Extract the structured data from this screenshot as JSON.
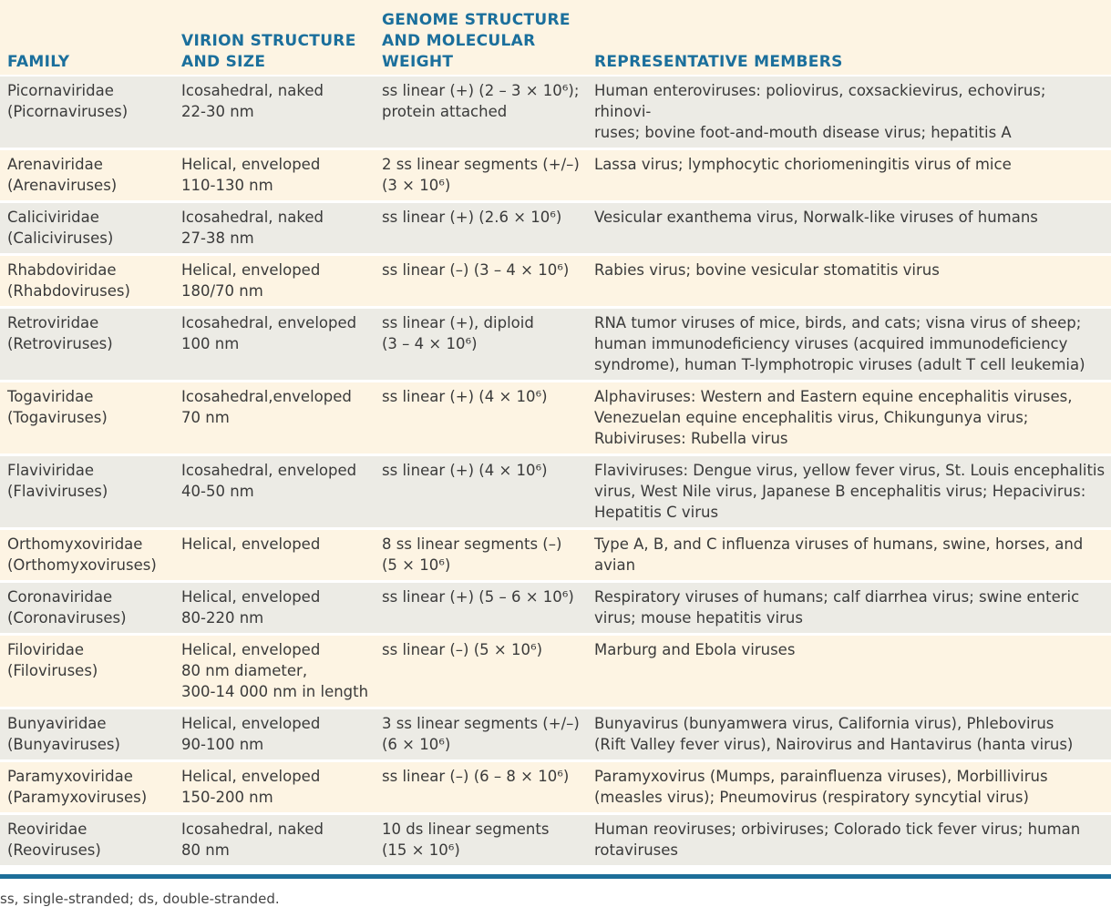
{
  "headers": {
    "family": [
      "FAMILY"
    ],
    "virion": [
      "VIRION STRUCTURE",
      "AND SIZE"
    ],
    "genome": [
      "GENOME STRUCTURE",
      "AND MOLECULAR",
      "WEIGHT"
    ],
    "members": [
      "REPRESENTATIVE MEMBERS"
    ]
  },
  "colors": {
    "header_text": "#1b6f9c",
    "row_grey": "#ecebe5",
    "row_cream": "#fdf4e3",
    "rule": "#1d6e99"
  },
  "rows": [
    {
      "family": [
        "Picornaviridae",
        "(Picornaviruses)"
      ],
      "virion": [
        "Icosahedral, naked",
        "22-30 nm"
      ],
      "genome": [
        "ss linear (+) (2 – 3 × 10⁶);",
        "protein attached"
      ],
      "members": [
        "Human enteroviruses: poliovirus, coxsackievirus, echovirus; rhinovi-",
        "ruses; bovine foot-and-mouth disease virus; hepatitis A"
      ]
    },
    {
      "family": [
        "Arenaviridae",
        "(Arenaviruses)"
      ],
      "virion": [
        "Helical, enveloped",
        "110-130 nm"
      ],
      "genome": [
        "2 ss linear segments (+/–)",
        "(3 × 10⁶)"
      ],
      "members": [
        "Lassa virus; lymphocytic choriomeningitis virus of mice"
      ]
    },
    {
      "family": [
        "Caliciviridae",
        "(Caliciviruses)"
      ],
      "virion": [
        "Icosahedral, naked",
        "27-38 nm"
      ],
      "genome": [
        "ss linear (+) (2.6 × 10⁶)"
      ],
      "members": [
        "Vesicular exanthema virus, Norwalk-like viruses of humans"
      ]
    },
    {
      "family": [
        "Rhabdoviridae",
        "(Rhabdoviruses)"
      ],
      "virion": [
        "Helical, enveloped",
        "180/70 nm"
      ],
      "genome": [
        "ss linear (–) (3 – 4 × 10⁶)"
      ],
      "members": [
        "Rabies virus; bovine vesicular stomatitis virus"
      ]
    },
    {
      "family": [
        "Retroviridae",
        "(Retroviruses)"
      ],
      "virion": [
        "Icosahedral, enveloped",
        "100 nm"
      ],
      "genome": [
        "ss linear (+), diploid",
        "(3 – 4 × 10⁶)"
      ],
      "members": [
        "RNA tumor viruses of mice, birds, and cats; visna virus of sheep;",
        "human immunodeficiency viruses (acquired immunodeficiency",
        "syndrome), human T-lymphotropic viruses (adult T cell leukemia)"
      ]
    },
    {
      "family": [
        "Togaviridae",
        "(Togaviruses)"
      ],
      "virion": [
        "Icosahedral,enveloped",
        "70 nm"
      ],
      "genome": [
        "ss linear (+) (4 × 10⁶)"
      ],
      "members": [
        "Alphaviruses: Western and Eastern equine encephalitis viruses,",
        "Venezuelan equine encephalitis virus, Chikungunya virus;",
        "Rubiviruses: Rubella virus"
      ]
    },
    {
      "family": [
        "Flaviviridae",
        "(Flaviviruses)"
      ],
      "virion": [
        "Icosahedral, enveloped",
        "40-50 nm"
      ],
      "genome": [
        "ss linear (+) (4 × 10⁶)"
      ],
      "members": [
        "Flaviviruses: Dengue virus, yellow fever virus, St. Louis encephalitis",
        "virus, West Nile virus, Japanese B encephalitis virus; Hepacivirus:",
        "Hepatitis C virus"
      ]
    },
    {
      "family": [
        "Orthomyxoviridae",
        "(Orthomyxoviruses)"
      ],
      "virion": [
        "Helical, enveloped"
      ],
      "genome": [
        "8 ss linear segments (–)",
        "(5 × 10⁶)"
      ],
      "members": [
        "Type A, B, and C influenza viruses of humans, swine, horses, and",
        "avian"
      ]
    },
    {
      "family": [
        "Coronaviridae",
        "(Coronaviruses)"
      ],
      "virion": [
        "Helical, enveloped",
        "80-220 nm"
      ],
      "genome": [
        "ss linear (+) (5 – 6 × 10⁶)"
      ],
      "members": [
        "Respiratory viruses of humans; calf diarrhea virus; swine enteric",
        "virus; mouse hepatitis virus"
      ]
    },
    {
      "family": [
        "Filoviridae",
        "(Filoviruses)"
      ],
      "virion": [
        "Helical, enveloped",
        "80 nm diameter,",
        "300-14 000 nm in length"
      ],
      "genome": [
        "ss linear (–) (5 × 10⁶)"
      ],
      "members": [
        "Marburg and Ebola viruses"
      ]
    },
    {
      "family": [
        "Bunyaviridae",
        "(Bunyaviruses)"
      ],
      "virion": [
        "Helical, enveloped",
        "90-100 nm"
      ],
      "genome": [
        "3 ss linear segments (+/–)",
        "(6 × 10⁶)"
      ],
      "members": [
        "Bunyavirus (bunyamwera virus, California virus), Phlebovirus",
        "(Rift Valley fever virus), Nairovirus and Hantavirus (hanta virus)"
      ]
    },
    {
      "family": [
        "Paramyxoviridae",
        "(Paramyxoviruses)"
      ],
      "virion": [
        "Helical, enveloped",
        "150-200 nm"
      ],
      "genome": [
        "ss linear (–) (6 – 8 × 10⁶)"
      ],
      "members": [
        "Paramyxovirus (Mumps, parainfluenza viruses), Morbillivirus",
        "(measles virus); Pneumovirus (respiratory syncytial virus)"
      ]
    },
    {
      "family": [
        "Reoviridae",
        "(Reoviruses)"
      ],
      "virion": [
        "Icosahedral, naked",
        "80 nm"
      ],
      "genome": [
        "10 ds linear segments",
        "(15 × 10⁶)"
      ],
      "members": [
        "Human reoviruses; orbiviruses; Colorado tick fever virus; human",
        "rotaviruses"
      ]
    }
  ],
  "footnote": "ss, single-stranded; ds, double-stranded."
}
